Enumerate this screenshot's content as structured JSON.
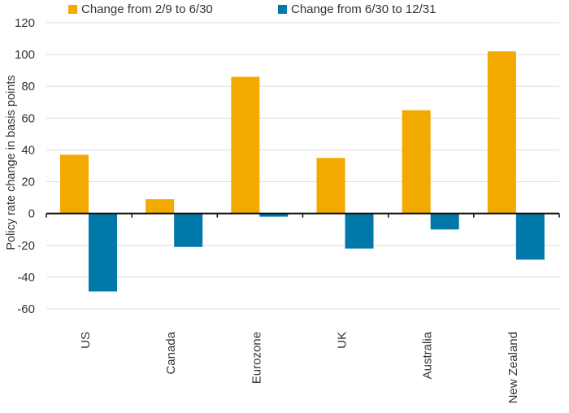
{
  "chart_data": {
    "type": "bar",
    "title": "",
    "xlabel": "",
    "ylabel": "Policy rate change in basis points",
    "categories": [
      "US",
      "Canada",
      "Eurozone",
      "UK",
      "Australia",
      "New Zealand"
    ],
    "series": [
      {
        "name": "Change from 2/9 to 6/30",
        "color": "#F2A900",
        "values": [
          37,
          9,
          86,
          35,
          65,
          102
        ]
      },
      {
        "name": "Change from 6/30 to 12/31",
        "color": "#0078AA",
        "values": [
          -49,
          -21,
          -2,
          -22,
          -10,
          -29
        ]
      }
    ],
    "ylim": [
      -60,
      120
    ],
    "yticks": [
      -60,
      -40,
      -20,
      0,
      20,
      40,
      60,
      80,
      100,
      120
    ],
    "grid": true,
    "legend_position": "top-left",
    "colors": {
      "gridline": "#DCDCDC",
      "axis": "#111111",
      "text": "#333333"
    }
  }
}
